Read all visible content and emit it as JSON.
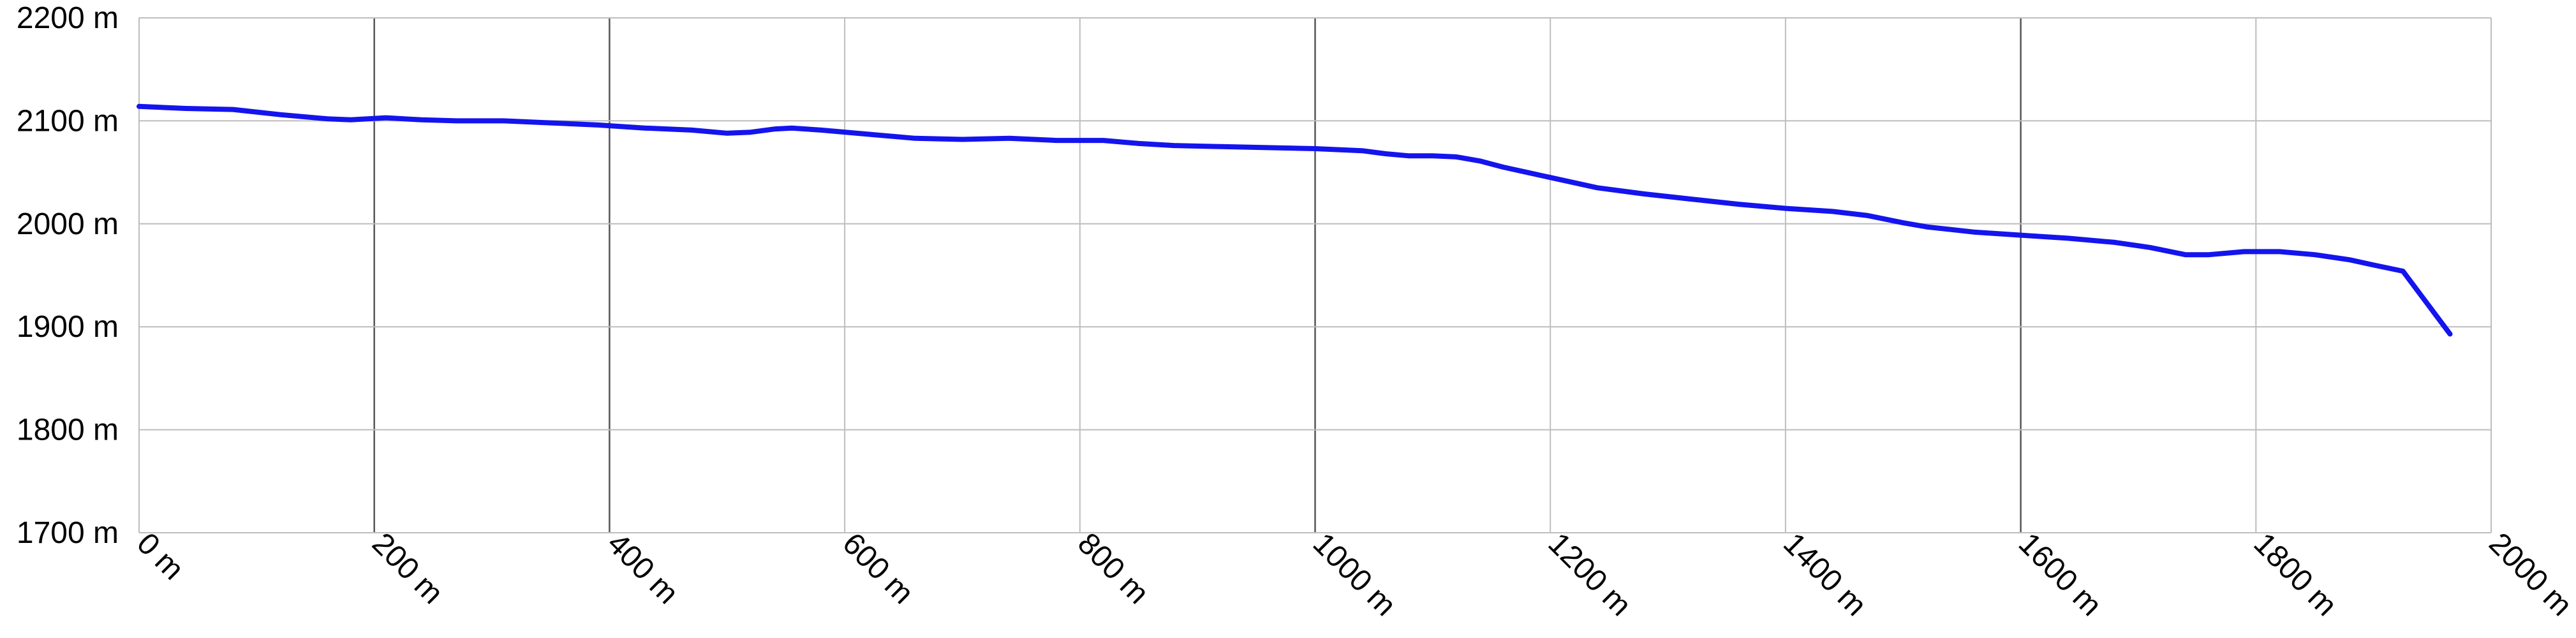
{
  "chart_data": {
    "type": "line",
    "title": "",
    "xlabel": "",
    "ylabel": "",
    "x_unit": "m",
    "y_unit": "m",
    "xlim": [
      0,
      2000
    ],
    "ylim": [
      1700,
      2200
    ],
    "x_ticks": [
      0,
      200,
      400,
      600,
      800,
      1000,
      1200,
      1400,
      1600,
      1800,
      2000
    ],
    "y_ticks": [
      1700,
      1800,
      1900,
      2000,
      2100,
      2200
    ],
    "x_tick_labels": [
      "0 m",
      "200 m",
      "400 m",
      "600 m",
      "800 m",
      "1000 m",
      "1200 m",
      "1400 m",
      "1600 m",
      "1800 m",
      "2000 m"
    ],
    "y_tick_labels": [
      "1700 m",
      "1800 m",
      "1900 m",
      "2000 m",
      "2100 m",
      "2200 m"
    ],
    "major_gridlines_x": [
      200,
      400,
      1000,
      1600
    ],
    "grid": true,
    "line_color": "#1414ee",
    "series": [
      {
        "x": [
          0,
          40,
          80,
          120,
          160,
          180,
          210,
          240,
          270,
          310,
          350,
          390,
          430,
          470,
          500,
          520,
          540,
          555,
          580,
          620,
          660,
          700,
          740,
          780,
          820,
          850,
          880,
          920,
          960,
          1000,
          1040,
          1060,
          1080,
          1100,
          1120,
          1140,
          1160,
          1200,
          1240,
          1280,
          1320,
          1360,
          1400,
          1440,
          1470,
          1500,
          1520,
          1560,
          1600,
          1640,
          1680,
          1710,
          1740,
          1760,
          1790,
          1820,
          1850,
          1880,
          1900,
          1925,
          1965
        ],
        "y": [
          2114,
          2112,
          2111,
          2106,
          2102,
          2101,
          2103,
          2101,
          2100,
          2100,
          2098,
          2096,
          2093,
          2091,
          2088,
          2089,
          2092,
          2093,
          2091,
          2087,
          2083,
          2082,
          2083,
          2081,
          2081,
          2078,
          2076,
          2075,
          2074,
          2073,
          2071,
          2068,
          2066,
          2066,
          2065,
          2061,
          2055,
          2045,
          2035,
          2029,
          2024,
          2019,
          2015,
          2012,
          2008,
          2001,
          1997,
          1992,
          1989,
          1986,
          1982,
          1977,
          1970,
          1970,
          1973,
          1973,
          1970,
          1965,
          1960,
          1954,
          1893
        ]
      }
    ]
  }
}
